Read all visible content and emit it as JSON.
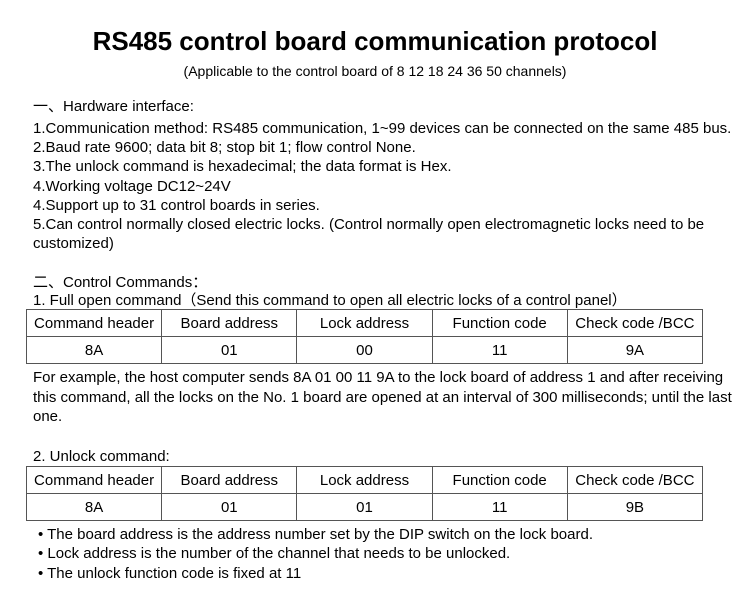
{
  "title": "RS485 control board communication protocol",
  "subtitle": "(Applicable to the control board of 8 12 18 24 36 50 channels)",
  "hardware": {
    "heading": "一、Hardware interface:",
    "items": [
      "1.Communication method: RS485 communication, 1~99 devices can be connected on the same 485 bus.",
      "2.Baud rate 9600; data bit 8; stop bit 1; flow control None.",
      "3.The unlock command is hexadecimal; the data format is Hex.",
      "4.Working voltage DC12~24V",
      "4.Support up to 31 control boards in series.",
      "5.Can control normally closed electric locks. (Control normally open electromagnetic locks need to be",
      "customized)"
    ]
  },
  "commands": {
    "heading": "二、Control Commands：",
    "full_open": {
      "title": "1.  Full open command（Send this command to open all electric locks of a control panel）",
      "headers": [
        "Command header",
        "Board address",
        "Lock address",
        "Function code",
        "Check code /BCC"
      ],
      "values": [
        "8A",
        "01",
        "00",
        "11",
        "9A"
      ],
      "example": [
        "For example, the host computer sends 8A 01 00 11 9A to the lock board of address 1 and after receiving",
        "this command, all the locks on the No. 1 board are opened at an interval of 300 milliseconds; until the last",
        "one."
      ]
    },
    "unlock": {
      "title": "2.  Unlock command:",
      "headers": [
        "Command header",
        "Board address",
        "Lock address",
        "Function code",
        "Check code /BCC"
      ],
      "values": [
        "8A",
        "01",
        "01",
        "11",
        "9B"
      ],
      "notes": [
        "• The board address is the address number set by the DIP switch on the lock board.",
        "• Lock address is the number of the channel that needs to be unlocked.",
        "• The unlock function code is fixed at 11"
      ]
    }
  }
}
